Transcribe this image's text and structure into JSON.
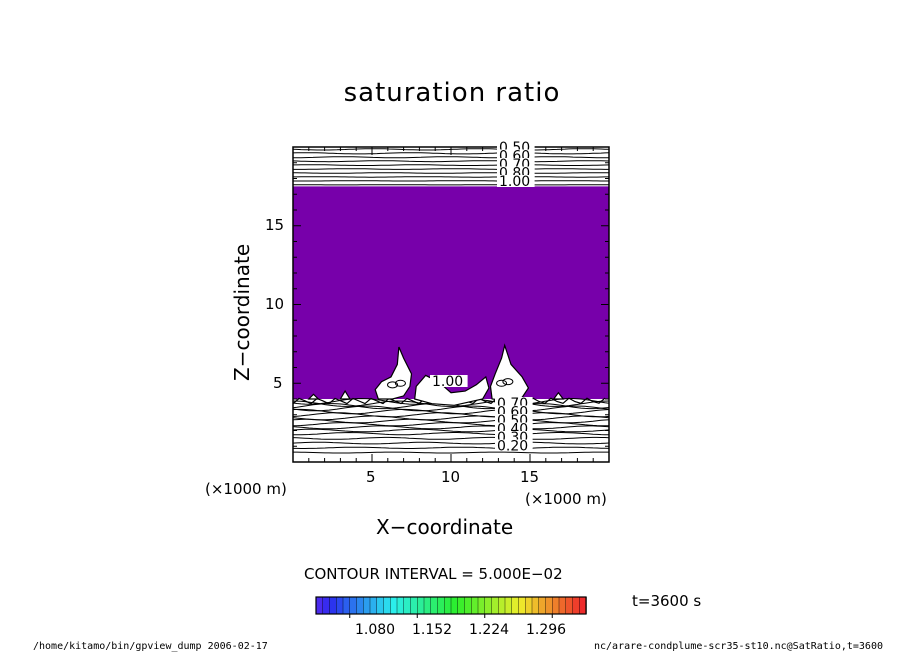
{
  "footer": {
    "left": "/home/kitamo/bin/gpview_dump  2006-02-17",
    "right": "nc/arare-condplume-scr35-st10.nc@SatRatio,t=3600"
  },
  "colors": {
    "fill": "#7700aa",
    "line": "#000000",
    "background": "#ffffff"
  },
  "chart_data": {
    "type": "contour",
    "title": "saturation ratio",
    "xlabel": "X−coordinate",
    "ylabel": "Z−coordinate",
    "x_units": "(×1000 m)",
    "y_units": "(×1000 m)",
    "xlim": [
      0,
      20
    ],
    "ylim": [
      0,
      20
    ],
    "x_ticks": [
      5,
      10,
      15
    ],
    "y_ticks": [
      5,
      10,
      15
    ],
    "x_tick_labels": [
      "5",
      "10",
      "15"
    ],
    "y_tick_labels": [
      "5",
      "10",
      "15"
    ],
    "contour_interval_text": "CONTOUR INTERVAL = 5.000E−02",
    "contour_interval": 0.05,
    "contour_labels_top": [
      "0.50",
      "0.60",
      "0.70",
      "0.80",
      "1.00"
    ],
    "contour_labels_bottom": [
      "0.70",
      "0.60",
      "0.50",
      "0.40",
      "0.30",
      "0.20"
    ],
    "contour_label_mid": "1.00",
    "lower_line_levels_km": [
      0.6,
      0.9,
      1.2,
      1.5,
      1.8,
      2.0,
      2.2,
      2.4,
      2.6,
      2.8,
      3.0,
      3.2,
      3.4,
      3.55,
      3.7,
      3.85
    ],
    "upper_line_levels_km": [
      17.6,
      17.85,
      18.1,
      18.35,
      18.6,
      18.85,
      19.1,
      19.35,
      19.6,
      19.85
    ],
    "supersaturated_layer_km": [
      4.0,
      17.5
    ],
    "time_label": "t=3600 s",
    "colorbar": {
      "tick_labels": [
        "1.080",
        "1.152",
        "1.224",
        "1.296"
      ],
      "ticks": [
        1.08,
        1.152,
        1.224,
        1.296
      ],
      "range": [
        1.044,
        1.332
      ]
    }
  }
}
